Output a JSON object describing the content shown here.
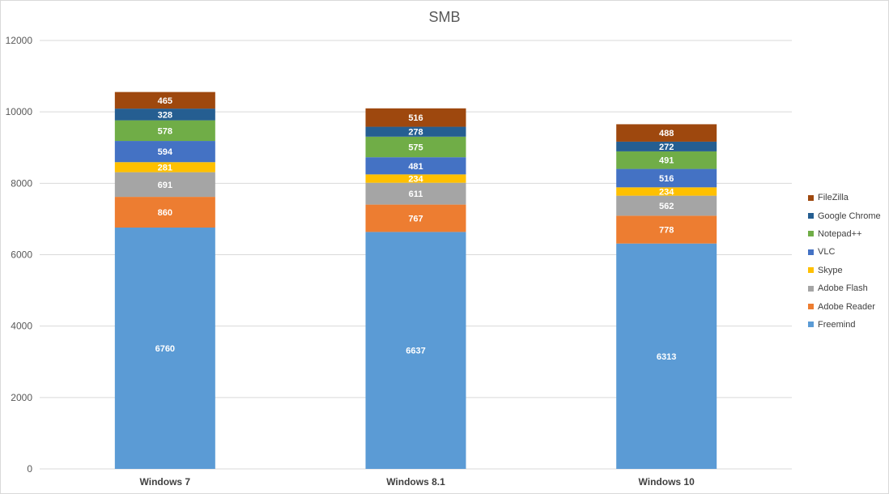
{
  "chart_data": {
    "type": "bar",
    "stacked": true,
    "title": "SMB",
    "xlabel": "",
    "ylabel": "",
    "ylim": [
      0,
      12000
    ],
    "yticks": [
      0,
      2000,
      4000,
      6000,
      8000,
      10000,
      12000
    ],
    "grid": true,
    "legend_position": "right",
    "categories": [
      "Windows 7",
      "Windows 8.1",
      "Windows 10"
    ],
    "series": [
      {
        "name": "Freemind",
        "color": "#5b9bd5",
        "values": [
          6760,
          6637,
          6313
        ]
      },
      {
        "name": "Adobe Reader",
        "color": "#ed7d31",
        "values": [
          860,
          767,
          778
        ]
      },
      {
        "name": "Adobe Flash",
        "color": "#a5a5a5",
        "values": [
          691,
          611,
          562
        ]
      },
      {
        "name": "Skype",
        "color": "#ffc000",
        "values": [
          281,
          234,
          234
        ]
      },
      {
        "name": "VLC",
        "color": "#4472c4",
        "values": [
          594,
          481,
          516
        ]
      },
      {
        "name": "Notepad++",
        "color": "#70ad47",
        "values": [
          578,
          575,
          491
        ]
      },
      {
        "name": "Google Chrome",
        "color": "#255e91",
        "values": [
          328,
          278,
          272
        ]
      },
      {
        "name": "FileZilla",
        "color": "#9e480e",
        "values": [
          465,
          516,
          488
        ]
      }
    ]
  }
}
